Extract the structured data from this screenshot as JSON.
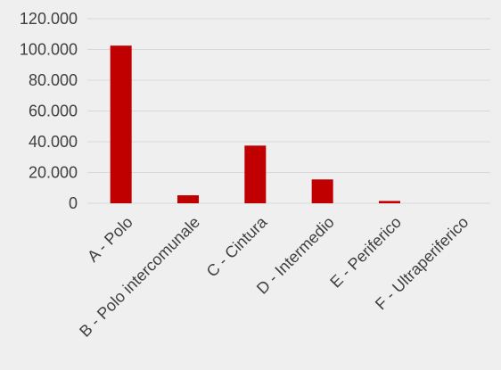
{
  "chart_data": {
    "type": "bar",
    "title": "",
    "xlabel": "",
    "ylabel": "",
    "categories": [
      "A - Polo",
      "B - Polo intercomunale",
      "C - Cintura",
      "D - Intermedio",
      "E - Periferico",
      "F - Ultraperiferico"
    ],
    "series": [
      {
        "values": [
          102500,
          5200,
          37500,
          15500,
          1500,
          0
        ],
        "color": "#c00000"
      }
    ],
    "ylim": [
      0,
      120000
    ],
    "yticks": [
      0,
      20000,
      40000,
      60000,
      80000,
      100000,
      120000
    ],
    "ytick_labels": [
      "0",
      "20.000",
      "40.000",
      "60.000",
      "80.000",
      "100.000",
      "120.000"
    ],
    "grid": true,
    "legend": "none",
    "colors": {
      "background": "#efefef",
      "grid": "#d9d9d9",
      "text": "#404040",
      "bar": "#c00000"
    }
  }
}
